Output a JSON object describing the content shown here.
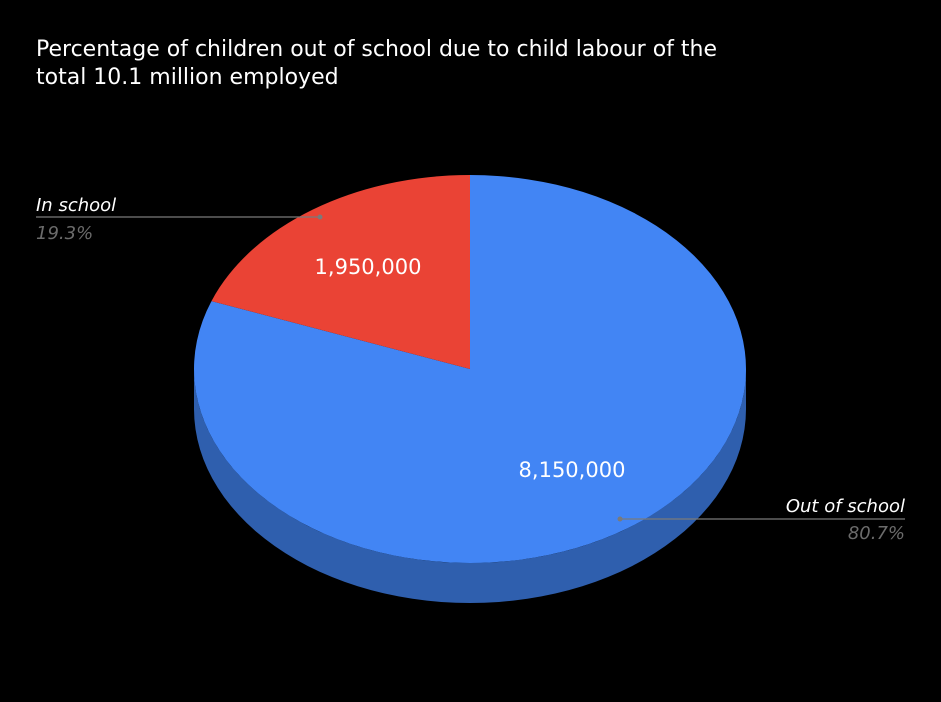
{
  "chart_data": {
    "type": "pie",
    "title_lines": [
      "Percentage of children out of school due to child labour of the",
      "total 10.1 million employed"
    ],
    "slices": [
      {
        "label": "In school",
        "value": 1950000,
        "value_label": "1,950,000",
        "percent_label": "19.3%",
        "color": "#ea4335",
        "side_color": "#b33126"
      },
      {
        "label": "Out of school",
        "value": 8150000,
        "value_label": "8,150,000",
        "percent_label": "80.7%",
        "color": "#4285f4",
        "side_color": "#2f5fae"
      }
    ],
    "pie_style": "3d",
    "background": "#000000",
    "legend": "callout-labels"
  }
}
